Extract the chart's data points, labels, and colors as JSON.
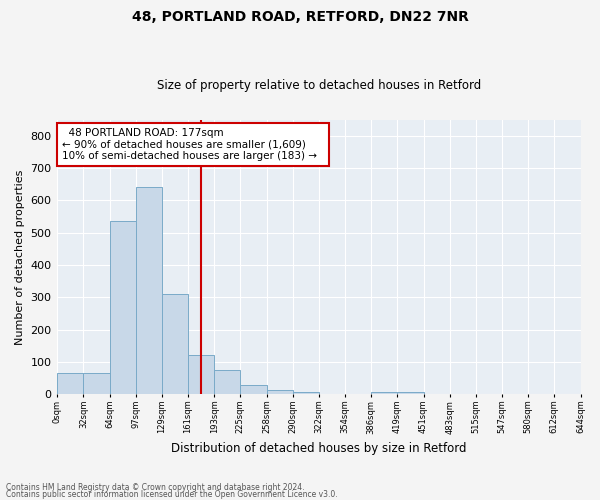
{
  "title": "48, PORTLAND ROAD, RETFORD, DN22 7NR",
  "subtitle": "Size of property relative to detached houses in Retford",
  "xlabel": "Distribution of detached houses by size in Retford",
  "ylabel": "Number of detached properties",
  "bar_values": [
    65,
    65,
    535,
    640,
    310,
    120,
    75,
    28,
    12,
    8,
    0,
    0,
    8,
    5,
    0,
    0,
    0,
    0,
    0,
    0
  ],
  "bin_labels": [
    "0sqm",
    "32sqm",
    "64sqm",
    "97sqm",
    "129sqm",
    "161sqm",
    "193sqm",
    "225sqm",
    "258sqm",
    "290sqm",
    "322sqm",
    "354sqm",
    "386sqm",
    "419sqm",
    "451sqm",
    "483sqm",
    "515sqm",
    "547sqm",
    "580sqm",
    "612sqm",
    "644sqm"
  ],
  "bar_color": "#c8d8e8",
  "bar_edge_color": "#7aaac8",
  "background_color": "#e8eef4",
  "grid_color": "#ffffff",
  "vline_bin_index": 5,
  "annotation_title": "48 PORTLAND ROAD: 177sqm",
  "annotation_line1": "← 90% of detached houses are smaller (1,609)",
  "annotation_line2": "10% of semi-detached houses are larger (183) →",
  "annotation_box_color": "#ffffff",
  "annotation_border_color": "#cc0000",
  "vline_color": "#cc0000",
  "ylim": [
    0,
    850
  ],
  "yticks": [
    0,
    100,
    200,
    300,
    400,
    500,
    600,
    700,
    800
  ],
  "footer1": "Contains HM Land Registry data © Crown copyright and database right 2024.",
  "footer2": "Contains public sector information licensed under the Open Government Licence v3.0."
}
